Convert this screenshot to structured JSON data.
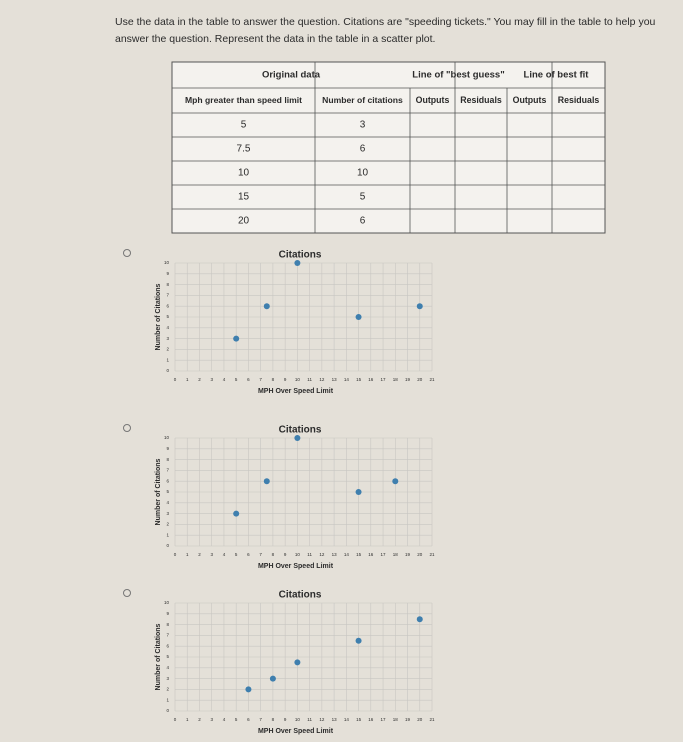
{
  "question": "Use the data in the table to answer the question. Citations are \"speeding tickets.\" You may fill in the table to help you answer the question. Represent the data in the table in a scatter plot.",
  "table": {
    "group_headers": [
      "Original data",
      "Line of \"best guess\"",
      "Line of best fit"
    ],
    "headers": [
      "Mph greater than speed limit",
      "Number of citations",
      "Outputs",
      "Residuals",
      "Outputs",
      "Residuals"
    ],
    "rows": [
      [
        "5",
        "3"
      ],
      [
        "7.5",
        "6"
      ],
      [
        "10",
        "10"
      ],
      [
        "15",
        "5"
      ],
      [
        "20",
        "6"
      ]
    ]
  },
  "chart_data": [
    {
      "type": "scatter",
      "title": "Citations",
      "x_label": "MPH Over Speed Limit",
      "y_label": "Number of Citations",
      "x": [
        5,
        7.5,
        10,
        15,
        20
      ],
      "series": [
        {
          "color": "#3f7fae",
          "values": [
            3,
            6,
            10,
            5,
            6
          ]
        }
      ],
      "xlim": [
        0,
        21
      ],
      "ylim": [
        0,
        10
      ],
      "xticks": [
        0,
        1,
        2,
        3,
        4,
        5,
        6,
        7,
        8,
        9,
        10,
        11,
        12,
        13,
        14,
        15,
        16,
        17,
        18,
        19,
        20,
        21
      ],
      "yticks": [
        0,
        1,
        2,
        3,
        4,
        5,
        6,
        7,
        8,
        9,
        10
      ],
      "grid": true
    },
    {
      "type": "scatter",
      "title": "Citations",
      "x_label": "MPH Over Speed Limit",
      "y_label": "Number of Citations",
      "x": [
        5,
        7.5,
        10,
        15,
        18
      ],
      "series": [
        {
          "color": "#3f7fae",
          "values": [
            3,
            6,
            10,
            5,
            6
          ]
        }
      ],
      "xlim": [
        0,
        21
      ],
      "ylim": [
        0,
        10
      ],
      "xticks": [
        0,
        1,
        2,
        3,
        4,
        5,
        6,
        7,
        8,
        9,
        10,
        11,
        12,
        13,
        14,
        15,
        16,
        17,
        18,
        19,
        20,
        21
      ],
      "yticks": [
        0,
        1,
        2,
        3,
        4,
        5,
        6,
        7,
        8,
        9,
        10
      ],
      "grid": true
    },
    {
      "type": "scatter",
      "title": "Citations",
      "x_label": "MPH Over Speed Limit",
      "y_label": "Number of Citations",
      "x": [
        6,
        8,
        10,
        15,
        20
      ],
      "series": [
        {
          "color": "#3f7fae",
          "values": [
            2,
            3,
            4.5,
            6.5,
            8.5
          ]
        }
      ],
      "xlim": [
        0,
        21
      ],
      "ylim": [
        0,
        10
      ],
      "xticks": [
        0,
        1,
        2,
        3,
        4,
        5,
        6,
        7,
        8,
        9,
        10,
        11,
        12,
        13,
        14,
        15,
        16,
        17,
        18,
        19,
        20,
        21
      ],
      "yticks": [
        0,
        1,
        2,
        3,
        4,
        5,
        6,
        7,
        8,
        9,
        10
      ],
      "grid": true
    }
  ]
}
